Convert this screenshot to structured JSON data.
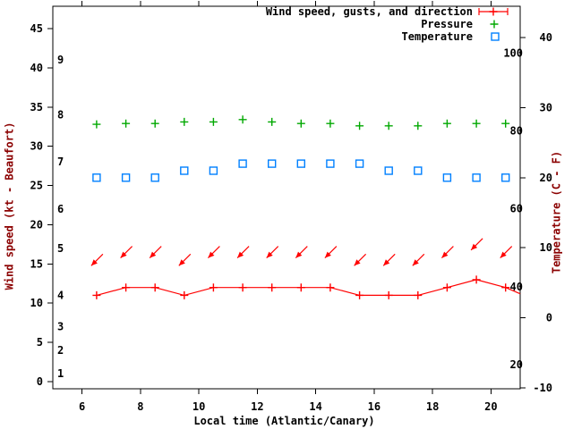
{
  "chart_data": {
    "type": "line",
    "xlabel": "Local time (Atlantic/Canary)",
    "ylabel_left": "Wind speed (kt - Beaufort)",
    "ylabel_right": "Temperature (C - F)",
    "x_axis": {
      "ticks": [
        6,
        8,
        10,
        12,
        14,
        16,
        18,
        20
      ],
      "range": [
        5,
        21
      ]
    },
    "left_axis_kt": {
      "ticks": [
        0,
        5,
        10,
        15,
        20,
        25,
        30,
        35,
        40,
        45
      ],
      "range": [
        -1,
        48
      ]
    },
    "left_axis_beaufort": [
      {
        "label": "1",
        "kt": 1
      },
      {
        "label": "2",
        "kt": 4
      },
      {
        "label": "3",
        "kt": 7
      },
      {
        "label": "4",
        "kt": 11
      },
      {
        "label": "5",
        "kt": 17
      },
      {
        "label": "6",
        "kt": 22
      },
      {
        "label": "7",
        "kt": 28
      },
      {
        "label": "8",
        "kt": 34
      },
      {
        "label": "9",
        "kt": 41
      }
    ],
    "right_axis_c": {
      "ticks": [
        -10,
        0,
        10,
        20,
        30,
        40
      ],
      "range": [
        -10,
        44.5
      ]
    },
    "right_axis_f": [
      {
        "label": "20",
        "c": -6.667
      },
      {
        "label": "40",
        "c": 4.444
      },
      {
        "label": "60",
        "c": 15.556
      },
      {
        "label": "80",
        "c": 26.667
      },
      {
        "label": "100",
        "c": 37.778
      }
    ],
    "x": [
      6.5,
      7.5,
      8.5,
      9.5,
      10.5,
      11.5,
      12.5,
      13.5,
      14.5,
      15.5,
      16.5,
      17.5,
      18.5,
      19.5,
      20.5
    ],
    "series": [
      {
        "name": "Wind speed, gusts, and direction",
        "color": "#ff0000",
        "marker": "plus",
        "wind_speed_kt": [
          11,
          12,
          12,
          11,
          12,
          12,
          12,
          12,
          12,
          11,
          11,
          11,
          12,
          13,
          12
        ],
        "gust_kt": [
          15,
          16,
          16,
          15,
          16,
          16,
          16,
          16,
          16,
          15,
          15,
          15,
          16,
          17,
          16
        ],
        "direction_note": "all arrows point toward lower-left (wind from NE)",
        "line_end_extension": {
          "t": 21.0,
          "kt": 11.2
        }
      },
      {
        "name": "Pressure",
        "color": "#00a800",
        "marker": "plus",
        "plotted_level_on_kt_axis": [
          32.8,
          32.9,
          32.9,
          33.1,
          33.1,
          33.4,
          33.1,
          32.9,
          32.9,
          32.6,
          32.6,
          32.6,
          32.9,
          32.9,
          32.9
        ],
        "scale_note": "no numeric pressure scale visible in image"
      },
      {
        "name": "Temperature",
        "color": "#0080ff",
        "marker": "open-square",
        "values_c": [
          20,
          20,
          20,
          21,
          21,
          22,
          22,
          22,
          22,
          22,
          21,
          21,
          20,
          20,
          20
        ]
      }
    ],
    "legend": {
      "position": "top-right-inside",
      "entries": [
        "Wind speed, gusts, and direction",
        "Pressure",
        "Temperature"
      ]
    },
    "grid": "off"
  }
}
